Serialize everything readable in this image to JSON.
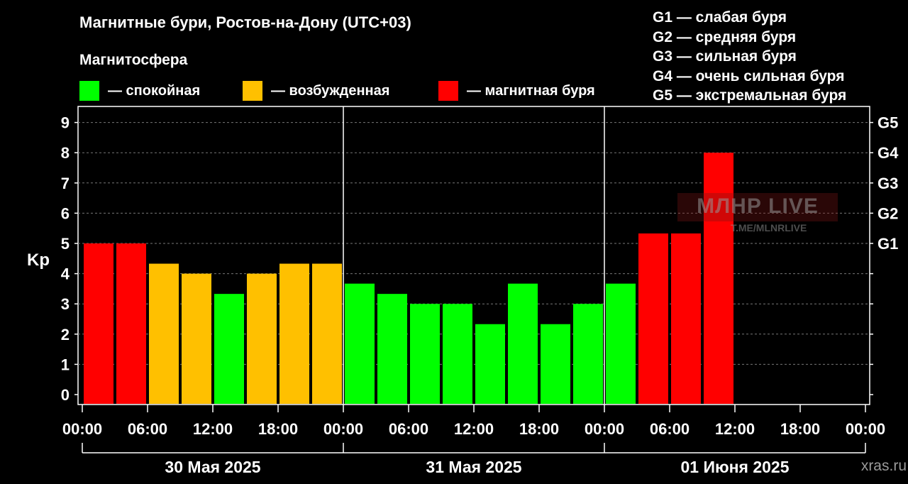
{
  "header": {
    "title": "Магнитные бури, Ростов-на-Дону (UTC+03)",
    "magnetosphere_title": "Магнитосфера"
  },
  "legend": [
    {
      "label": "— спокойная",
      "color": "#00ff00"
    },
    {
      "label": "— возбужденная",
      "color": "#ffc000"
    },
    {
      "label": "— магнитная буря",
      "color": "#ff0000"
    }
  ],
  "storm_scale": [
    "G1 — слабая буря",
    "G2 — средняя буря",
    "G3 — сильная буря",
    "G4 — очень сильная буря",
    "G5 — экстремальная буря"
  ],
  "watermark": {
    "main": "МЛНР LIVE",
    "sub": "T.ME/MLNRLIVE"
  },
  "source": "xras.ru",
  "chart_data": {
    "type": "bar",
    "ylabel": "Kp",
    "ylim": [
      0,
      9
    ],
    "y_ticks": [
      "0",
      "1",
      "2",
      "3",
      "4",
      "5",
      "6",
      "7",
      "8",
      "9"
    ],
    "right_ticks": [
      {
        "kp": 5,
        "label": "G1"
      },
      {
        "kp": 6,
        "label": "G2"
      },
      {
        "kp": 7,
        "label": "G3"
      },
      {
        "kp": 8,
        "label": "G4"
      },
      {
        "kp": 9,
        "label": "G5"
      }
    ],
    "x_tick_labels": [
      "00:00",
      "06:00",
      "12:00",
      "18:00",
      "00:00",
      "06:00",
      "12:00",
      "18:00",
      "00:00",
      "06:00",
      "12:00",
      "18:00",
      "00:00"
    ],
    "days": [
      "30 Мая 2025",
      "31 Мая 2025",
      "01 Июня 2025"
    ],
    "slots_per_day": 8,
    "values": [
      5.0,
      5.0,
      4.33,
      4.0,
      3.33,
      4.0,
      4.33,
      4.33,
      3.67,
      3.33,
      3.0,
      3.0,
      2.33,
      3.67,
      2.33,
      3.0,
      3.67,
      5.33,
      5.33,
      8.0
    ],
    "levels": [
      "storm",
      "storm",
      "disturbed",
      "disturbed",
      "quiet",
      "disturbed",
      "disturbed",
      "disturbed",
      "quiet",
      "quiet",
      "quiet",
      "quiet",
      "quiet",
      "quiet",
      "quiet",
      "quiet",
      "quiet",
      "storm",
      "storm",
      "storm"
    ],
    "level_colors": {
      "quiet": "#00ff00",
      "disturbed": "#ffc000",
      "storm": "#ff0000"
    },
    "grid": "dashed horizontal at each Kp level"
  }
}
